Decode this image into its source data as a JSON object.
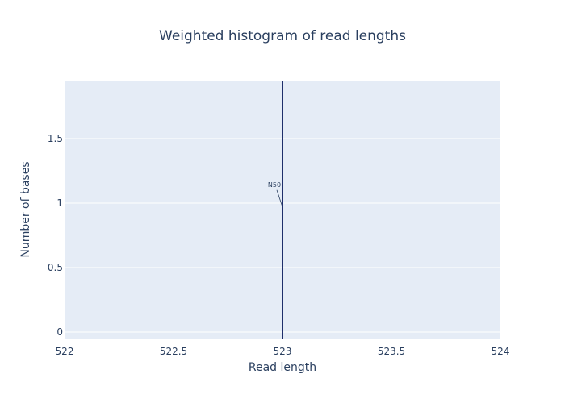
{
  "chart_data": {
    "type": "bar",
    "title": "Weighted histogram of read lengths",
    "xlabel": "Read length",
    "ylabel": "Number of bases",
    "xlim": [
      522,
      524
    ],
    "ylim": [
      -0.05,
      1.95
    ],
    "x_ticks": [
      "522",
      "522.5",
      "523",
      "523.5",
      "524"
    ],
    "y_ticks": [
      "0",
      "0.5",
      "1",
      "1.5"
    ],
    "grid": true,
    "bars": [
      {
        "x": 523,
        "value": 1
      }
    ],
    "vline": {
      "x": 523
    },
    "annotation": {
      "text": "N50",
      "x": 523,
      "y": 0.97
    },
    "colors": {
      "plot_bg": "#e5ecf6",
      "grid": "#ffffff",
      "line": "#1f2f6b",
      "text": "#2a3f5f"
    }
  }
}
